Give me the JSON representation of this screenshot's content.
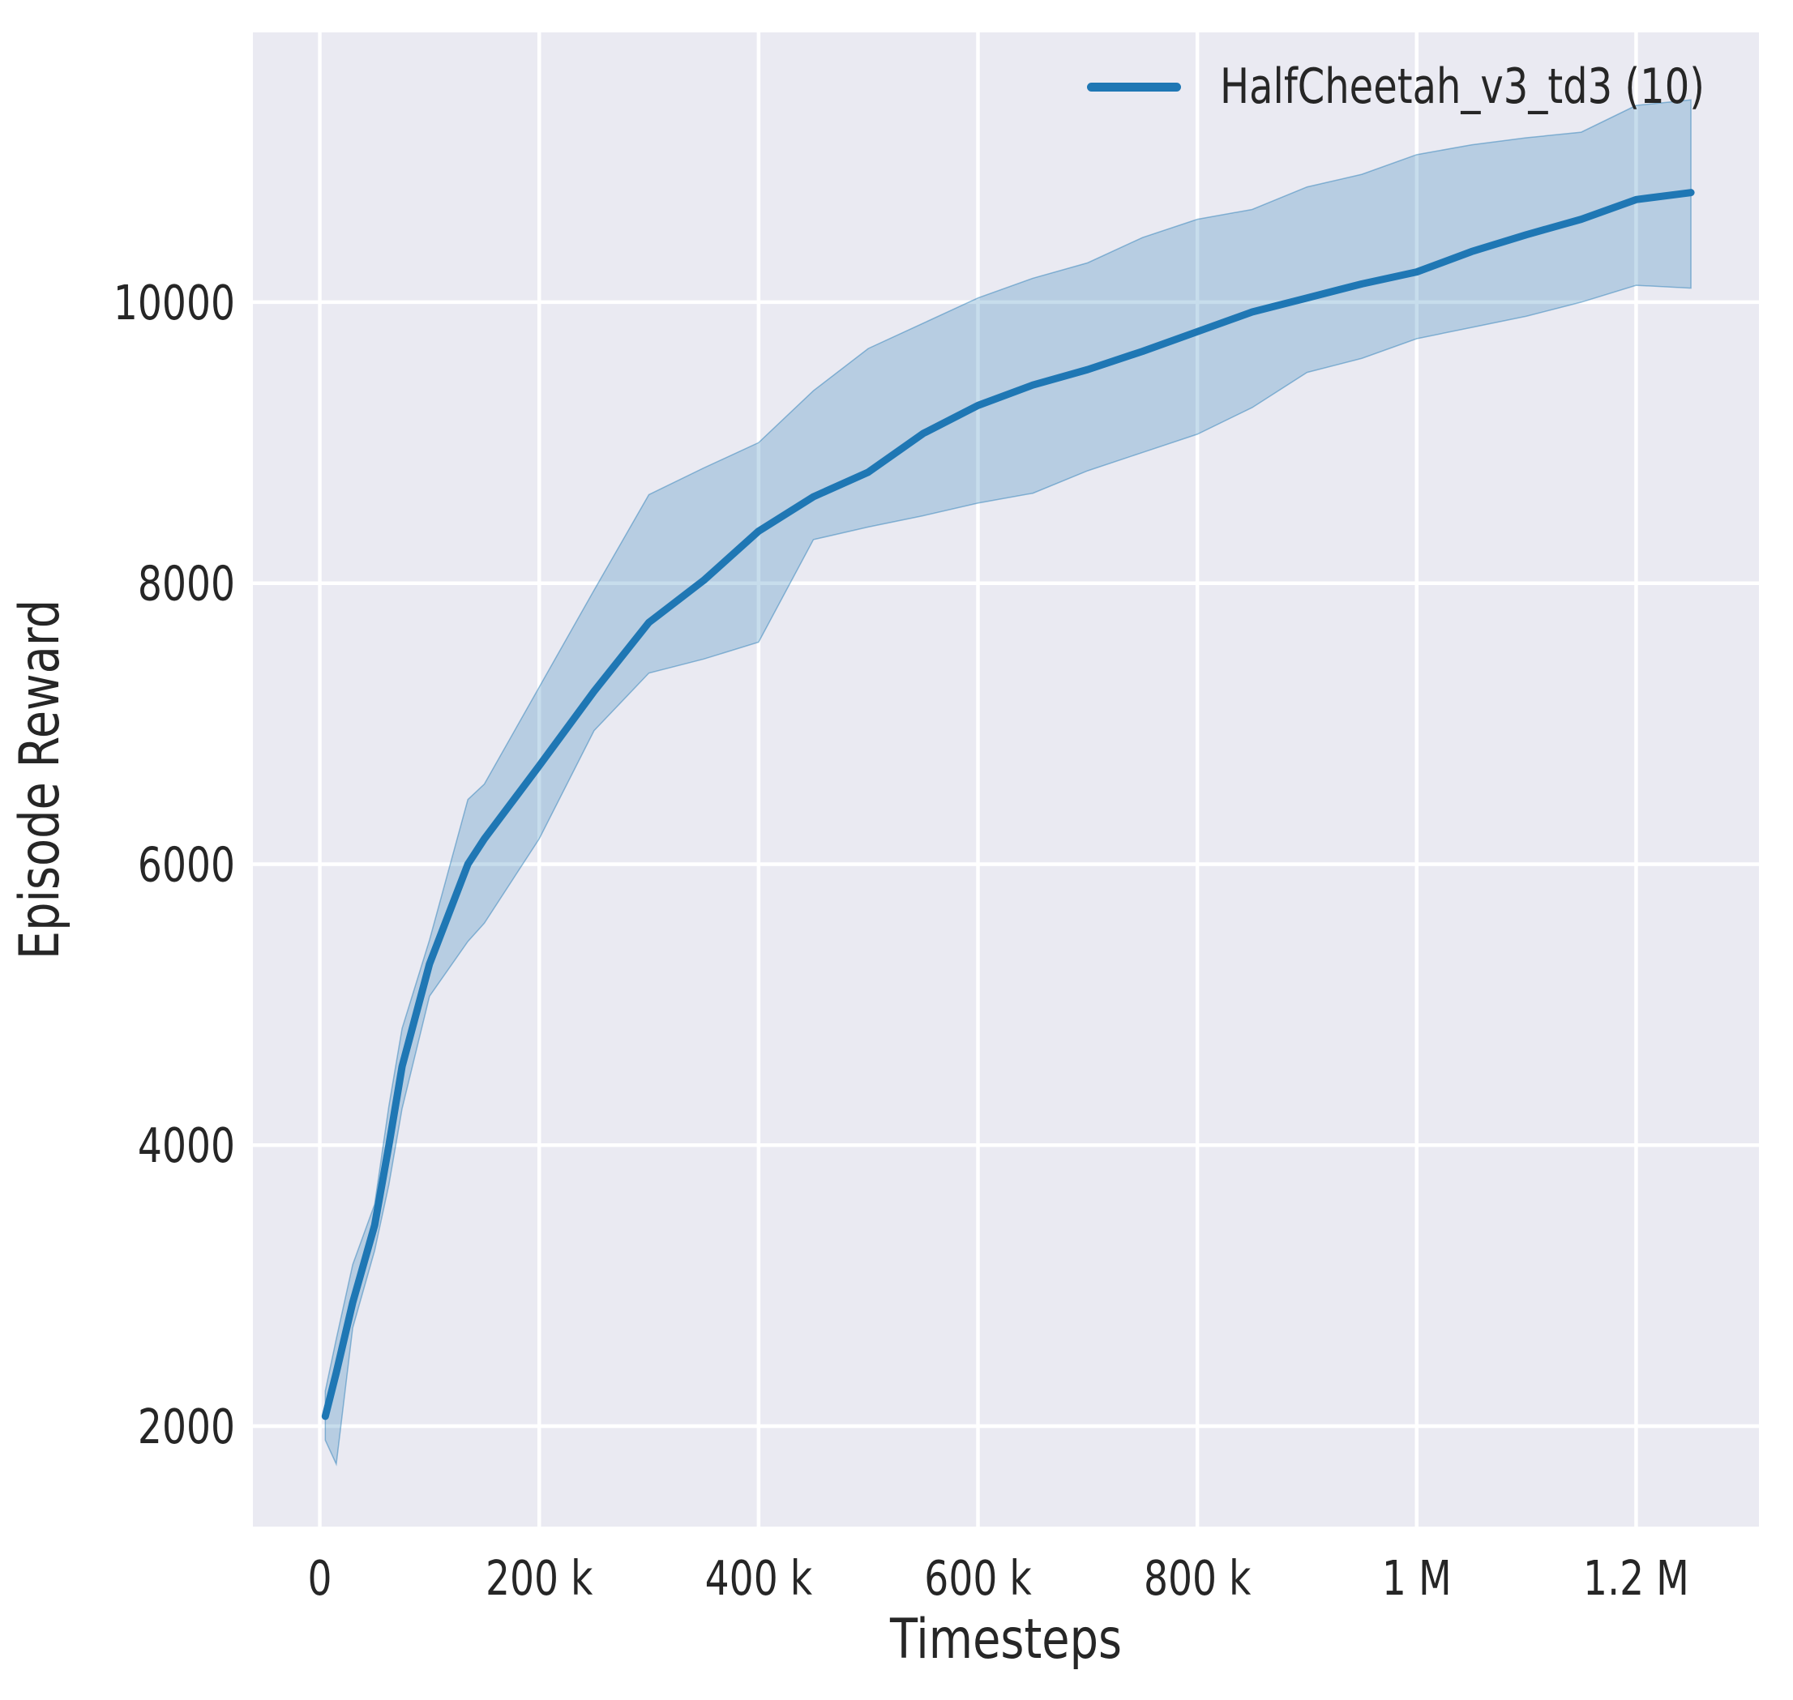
{
  "figure": {
    "background": "#ffffff",
    "plot_background": "#eaeaf2",
    "grid_color": "#ffffff",
    "text_color": "#262626"
  },
  "legend": {
    "position": "upper right",
    "entries": [
      {
        "label": "HalfCheetah_v3_td3 (10)",
        "color": "#1f77b4"
      }
    ]
  },
  "chart_data": {
    "type": "line",
    "title": "",
    "xlabel": "Timesteps",
    "ylabel": "Episode Reward",
    "xlim": [
      -61000,
      1312000
    ],
    "ylim": [
      1285,
      11920
    ],
    "grid": true,
    "legend_position": "upper right",
    "x_ticks": [
      {
        "v": 0,
        "label": "0"
      },
      {
        "v": 200000,
        "label": "200 k"
      },
      {
        "v": 400000,
        "label": "400 k"
      },
      {
        "v": 600000,
        "label": "600 k"
      },
      {
        "v": 800000,
        "label": "800 k"
      },
      {
        "v": 1000000,
        "label": "1 M"
      },
      {
        "v": 1200000,
        "label": "1.2 M"
      }
    ],
    "y_ticks": [
      {
        "v": 2000,
        "label": "2000"
      },
      {
        "v": 4000,
        "label": "4000"
      },
      {
        "v": 6000,
        "label": "6000"
      },
      {
        "v": 8000,
        "label": "8000"
      },
      {
        "v": 10000,
        "label": "10000"
      }
    ],
    "series": [
      {
        "name": "HalfCheetah_v3_td3 (10)",
        "color": "#1f77b4",
        "band_opacity": 0.25,
        "x": [
          5000,
          15000,
          30000,
          50000,
          63000,
          75000,
          100000,
          135000,
          150000,
          200000,
          250000,
          300000,
          350000,
          400000,
          450000,
          500000,
          550000,
          600000,
          650000,
          700000,
          750000,
          800000,
          850000,
          900000,
          950000,
          1000000,
          1050000,
          1100000,
          1150000,
          1200000,
          1250000
        ],
        "mean": [
          2070,
          2380,
          2880,
          3430,
          4000,
          4560,
          5290,
          6000,
          6180,
          6700,
          7230,
          7720,
          8020,
          8370,
          8615,
          8790,
          9065,
          9265,
          9410,
          9520,
          9650,
          9790,
          9930,
          10030,
          10130,
          10215,
          10360,
          10480,
          10590,
          10730,
          10780
        ],
        "band_lower": [
          1900,
          1730,
          2700,
          3250,
          3720,
          4260,
          5060,
          5450,
          5580,
          6180,
          6950,
          7360,
          7460,
          7580,
          8310,
          8400,
          8480,
          8570,
          8640,
          8800,
          8930,
          9060,
          9250,
          9500,
          9600,
          9740,
          9820,
          9900,
          10000,
          10120,
          10100
        ],
        "band_upper": [
          2250,
          2620,
          3150,
          3580,
          4280,
          4830,
          5460,
          6460,
          6570,
          7260,
          7950,
          8630,
          8820,
          9000,
          9370,
          9670,
          9850,
          10030,
          10170,
          10280,
          10460,
          10590,
          10660,
          10820,
          10910,
          11050,
          11120,
          11170,
          11210,
          11400,
          11440
        ]
      }
    ]
  }
}
